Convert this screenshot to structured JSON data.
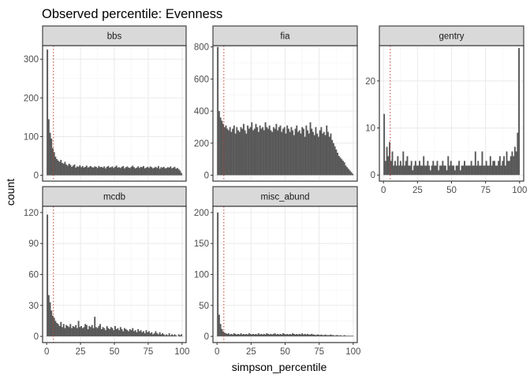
{
  "chart_data": {
    "type": "bar",
    "title": "Observed percentile: Evenness",
    "xlabel": "simpson_percentile",
    "ylabel": "count",
    "xlim": [
      -3,
      103
    ],
    "x_ticks": [
      0,
      25,
      50,
      75,
      100
    ],
    "reference_line_x": 5,
    "grid": true,
    "panels": [
      {
        "name": "bbs",
        "ylim": [
          -15,
          335
        ],
        "y_ticks": [
          0,
          100,
          200,
          300
        ],
        "x": [
          0,
          1,
          2,
          3,
          4,
          5,
          6,
          7,
          8,
          9,
          10,
          11,
          12,
          13,
          14,
          15,
          16,
          17,
          18,
          19,
          20,
          21,
          22,
          23,
          24,
          25,
          26,
          27,
          28,
          29,
          30,
          31,
          32,
          33,
          34,
          35,
          36,
          37,
          38,
          39,
          40,
          41,
          42,
          43,
          44,
          45,
          46,
          47,
          48,
          49,
          50,
          51,
          52,
          53,
          54,
          55,
          56,
          57,
          58,
          59,
          60,
          61,
          62,
          63,
          64,
          65,
          66,
          67,
          68,
          69,
          70,
          71,
          72,
          73,
          74,
          75,
          76,
          77,
          78,
          79,
          80,
          81,
          82,
          83,
          84,
          85,
          86,
          87,
          88,
          89,
          90,
          91,
          92,
          93,
          94,
          95,
          96,
          97,
          98,
          99
        ],
        "values": [
          325,
          145,
          110,
          95,
          70,
          60,
          48,
          42,
          38,
          35,
          40,
          32,
          30,
          35,
          28,
          25,
          30,
          27,
          22,
          25,
          28,
          20,
          23,
          22,
          26,
          21,
          24,
          20,
          22,
          25,
          20,
          22,
          24,
          21,
          20,
          23,
          22,
          19,
          24,
          21,
          22,
          20,
          23,
          18,
          22,
          24,
          20,
          21,
          23,
          19,
          22,
          25,
          20,
          21,
          19,
          22,
          24,
          18,
          21,
          23,
          20,
          19,
          22,
          25,
          21,
          18,
          20,
          23,
          19,
          22,
          21,
          24,
          18,
          20,
          22,
          19,
          23,
          21,
          18,
          20,
          22,
          19,
          24,
          17,
          21,
          20,
          22,
          18,
          19,
          21,
          20,
          23,
          18,
          20,
          22,
          17,
          19,
          16,
          12,
          6
        ]
      },
      {
        "name": "fia",
        "ylim": [
          -37,
          808
        ],
        "y_ticks": [
          0,
          200,
          400,
          600,
          800
        ],
        "x": [
          0,
          1,
          2,
          3,
          4,
          5,
          6,
          7,
          8,
          9,
          10,
          11,
          12,
          13,
          14,
          15,
          16,
          17,
          18,
          19,
          20,
          21,
          22,
          23,
          24,
          25,
          26,
          27,
          28,
          29,
          30,
          31,
          32,
          33,
          34,
          35,
          36,
          37,
          38,
          39,
          40,
          41,
          42,
          43,
          44,
          45,
          46,
          47,
          48,
          49,
          50,
          51,
          52,
          53,
          54,
          55,
          56,
          57,
          58,
          59,
          60,
          61,
          62,
          63,
          64,
          65,
          66,
          67,
          68,
          69,
          70,
          71,
          72,
          73,
          74,
          75,
          76,
          77,
          78,
          79,
          80,
          81,
          82,
          83,
          84,
          85,
          86,
          87,
          88,
          89,
          90,
          91,
          92,
          93,
          94,
          95,
          96,
          97,
          98,
          99
        ],
        "values": [
          800,
          400,
          360,
          340,
          320,
          300,
          310,
          290,
          280,
          300,
          270,
          290,
          310,
          260,
          300,
          280,
          270,
          300,
          290,
          320,
          280,
          260,
          310,
          290,
          300,
          330,
          280,
          290,
          320,
          300,
          270,
          310,
          290,
          300,
          280,
          330,
          300,
          290,
          310,
          280,
          270,
          300,
          290,
          320,
          280,
          300,
          310,
          270,
          290,
          300,
          260,
          310,
          290,
          270,
          300,
          280,
          250,
          290,
          310,
          270,
          280,
          260,
          300,
          290,
          240,
          310,
          280,
          260,
          330,
          290,
          270,
          250,
          300,
          260,
          240,
          280,
          300,
          260,
          270,
          250,
          310,
          270,
          240,
          260,
          220,
          200,
          180,
          160,
          140,
          120,
          110,
          100,
          90,
          80,
          60,
          50,
          40,
          30,
          20,
          10
        ]
      },
      {
        "name": "gentry",
        "ylim": [
          -1.3,
          27.5
        ],
        "y_ticks": [
          0,
          10,
          20
        ],
        "x": [
          0,
          1,
          2,
          3,
          4,
          5,
          6,
          7,
          8,
          9,
          10,
          11,
          12,
          13,
          14,
          15,
          16,
          17,
          18,
          19,
          20,
          21,
          22,
          23,
          24,
          25,
          26,
          27,
          28,
          29,
          30,
          31,
          32,
          33,
          34,
          35,
          36,
          37,
          38,
          39,
          40,
          41,
          42,
          43,
          44,
          45,
          46,
          47,
          48,
          49,
          50,
          51,
          52,
          53,
          54,
          55,
          56,
          57,
          58,
          59,
          60,
          61,
          62,
          63,
          64,
          65,
          66,
          67,
          68,
          69,
          70,
          71,
          72,
          73,
          74,
          75,
          76,
          77,
          78,
          79,
          80,
          81,
          82,
          83,
          84,
          85,
          86,
          87,
          88,
          89,
          90,
          91,
          92,
          93,
          94,
          95,
          96,
          97,
          98,
          99
        ],
        "values": [
          13,
          3,
          6,
          4,
          7,
          3,
          5,
          2,
          3,
          2,
          4,
          2,
          3,
          2,
          5,
          2,
          3,
          4,
          2,
          2,
          3,
          1,
          2,
          3,
          2,
          2,
          3,
          2,
          2,
          4,
          2,
          2,
          3,
          2,
          1,
          2,
          3,
          2,
          2,
          3,
          1,
          2,
          2,
          3,
          2,
          2,
          1,
          4,
          2,
          3,
          2,
          2,
          1,
          2,
          2,
          3,
          1,
          2,
          2,
          3,
          2,
          2,
          2,
          2,
          3,
          2,
          2,
          5,
          2,
          3,
          2,
          2,
          5,
          2,
          2,
          3,
          2,
          2,
          4,
          2,
          3,
          3,
          2,
          2,
          3,
          4,
          2,
          3,
          4,
          2,
          5,
          3,
          3,
          4,
          5,
          4,
          6,
          5,
          9,
          27
        ]
      },
      {
        "name": "mcdb",
        "ylim": [
          -6,
          126
        ],
        "y_ticks": [
          0,
          30,
          60,
          90,
          120
        ],
        "x": [
          0,
          1,
          2,
          3,
          4,
          5,
          6,
          7,
          8,
          9,
          10,
          11,
          12,
          13,
          14,
          15,
          16,
          17,
          18,
          19,
          20,
          21,
          22,
          23,
          24,
          25,
          26,
          27,
          28,
          29,
          30,
          31,
          32,
          33,
          34,
          35,
          36,
          37,
          38,
          39,
          40,
          41,
          42,
          43,
          44,
          45,
          46,
          47,
          48,
          49,
          50,
          51,
          52,
          53,
          54,
          55,
          56,
          57,
          58,
          59,
          60,
          61,
          62,
          63,
          64,
          65,
          66,
          67,
          68,
          69,
          70,
          71,
          72,
          73,
          74,
          75,
          76,
          77,
          78,
          79,
          80,
          81,
          82,
          83,
          84,
          85,
          86,
          87,
          88,
          89,
          90,
          91,
          92,
          93,
          94,
          95,
          96,
          97,
          98,
          99
        ],
        "values": [
          118,
          40,
          33,
          25,
          20,
          18,
          15,
          13,
          12,
          10,
          14,
          9,
          12,
          8,
          11,
          10,
          9,
          12,
          8,
          10,
          9,
          11,
          8,
          15,
          9,
          10,
          8,
          9,
          12,
          11,
          7,
          10,
          9,
          11,
          8,
          19,
          9,
          8,
          10,
          12,
          7,
          9,
          8,
          6,
          10,
          8,
          7,
          9,
          8,
          6,
          10,
          7,
          8,
          6,
          9,
          7,
          5,
          8,
          7,
          6,
          5,
          7,
          6,
          8,
          5,
          6,
          4,
          7,
          5,
          6,
          4,
          5,
          3,
          6,
          4,
          5,
          3,
          4,
          2,
          3,
          5,
          3,
          2,
          4,
          2,
          3,
          2,
          1,
          2,
          1,
          3,
          1,
          2,
          1,
          2,
          1,
          0,
          2,
          1,
          2
        ]
      },
      {
        "name": "misc_abund",
        "ylim": [
          -10,
          210
        ],
        "y_ticks": [
          0,
          50,
          100,
          150,
          200
        ],
        "x": [
          0,
          1,
          2,
          3,
          4,
          5,
          6,
          7,
          8,
          9,
          10,
          11,
          12,
          13,
          14,
          15,
          16,
          17,
          18,
          19,
          20,
          21,
          22,
          23,
          24,
          25,
          26,
          27,
          28,
          29,
          30,
          31,
          32,
          33,
          34,
          35,
          36,
          37,
          38,
          39,
          40,
          41,
          42,
          43,
          44,
          45,
          46,
          47,
          48,
          49,
          50,
          51,
          52,
          53,
          54,
          55,
          56,
          57,
          58,
          59,
          60,
          61,
          62,
          63,
          64,
          65,
          66,
          67,
          68,
          69,
          70,
          71,
          72,
          73,
          74,
          75,
          76,
          77,
          78,
          79,
          80,
          81,
          82,
          83,
          84,
          85,
          86,
          87,
          88,
          89,
          90,
          91,
          92,
          93,
          94,
          95,
          96,
          97,
          98,
          99
        ],
        "values": [
          200,
          35,
          20,
          12,
          8,
          6,
          5,
          4,
          5,
          3,
          4,
          3,
          5,
          4,
          3,
          4,
          3,
          5,
          3,
          4,
          3,
          4,
          3,
          5,
          4,
          3,
          4,
          3,
          4,
          3,
          5,
          3,
          4,
          3,
          4,
          3,
          5,
          4,
          3,
          4,
          3,
          4,
          5,
          3,
          4,
          3,
          4,
          3,
          5,
          4,
          3,
          4,
          3,
          4,
          3,
          5,
          4,
          3,
          4,
          3,
          4,
          3,
          5,
          3,
          4,
          3,
          4,
          3,
          3,
          4,
          3,
          3,
          2,
          3,
          3,
          2,
          3,
          2,
          2,
          3,
          2,
          2,
          2,
          3,
          2,
          2,
          1,
          2,
          2,
          1,
          2,
          1,
          1,
          2,
          1,
          1,
          1,
          1,
          1,
          1
        ]
      }
    ]
  }
}
